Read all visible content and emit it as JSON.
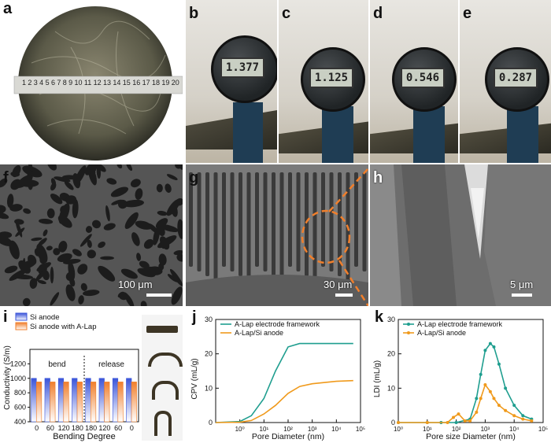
{
  "panels": {
    "a": "a",
    "b": "b",
    "c": "c",
    "d": "d",
    "e": "e",
    "f": "f",
    "g": "g",
    "h": "h",
    "i": "i",
    "j": "j",
    "k": "k"
  },
  "calipers": {
    "b": "1.377",
    "c": "1.125",
    "d": "0.546",
    "e": "0.287"
  },
  "ruler_ticks": [
    "1",
    "2",
    "3",
    "4",
    "5",
    "6",
    "7",
    "8",
    "9",
    "10",
    "11",
    "12",
    "13",
    "14",
    "15",
    "16",
    "17",
    "18",
    "19",
    "20"
  ],
  "scale_bars": {
    "f": "100 μm",
    "g": "30 μm",
    "h": "5 μm"
  },
  "chart_data": [
    {
      "panel": "i",
      "type": "bar",
      "ylabel": "Conductivity (S/m)",
      "xlabel": "Bending Degree",
      "categories": [
        "0",
        "60",
        "120",
        "180",
        "180",
        "120",
        "60",
        "0"
      ],
      "series": [
        {
          "name": "Si anode",
          "values": [
            1000,
            1000,
            1000,
            1000,
            1000,
            1000,
            1000,
            1000
          ],
          "color": "#3b55d9"
        },
        {
          "name": "Si anode with A-Lap",
          "values": [
            950,
            950,
            950,
            950,
            950,
            950,
            950,
            950
          ],
          "color": "#f07f2c"
        }
      ],
      "ylim": [
        400,
        1400
      ],
      "yticks": [
        "400",
        "600",
        "800",
        "1000",
        "1200"
      ],
      "annotations": [
        "bend",
        "release"
      ],
      "legend": "top"
    },
    {
      "panel": "j",
      "type": "line",
      "xlabel": "Pore  Diameter (nm)",
      "ylabel": "CPV (mL/g)",
      "xscale": "log",
      "xlim": [
        0.1,
        100000
      ],
      "ylim": [
        0,
        30
      ],
      "yticks": [
        "0",
        "10",
        "20",
        "30"
      ],
      "xticks": [
        "10⁰",
        "10¹",
        "10²",
        "10³",
        "10⁴",
        "10⁵"
      ],
      "series": [
        {
          "name": "A-Lap electrode framework",
          "color": "#1f9e8f",
          "x": [
            0.1,
            1,
            3,
            10,
            30,
            100,
            300,
            1000,
            10000,
            50000
          ],
          "y": [
            0,
            0.3,
            2,
            7,
            15,
            22,
            23,
            23,
            23,
            23
          ]
        },
        {
          "name": "A-Lap/Si anode",
          "color": "#f09a1c",
          "x": [
            0.1,
            1,
            3,
            10,
            30,
            100,
            300,
            1000,
            10000,
            50000
          ],
          "y": [
            0,
            0.1,
            0.6,
            2.5,
            5,
            8.5,
            10.5,
            11.3,
            12,
            12.2
          ]
        }
      ],
      "legend": "top-left"
    },
    {
      "panel": "k",
      "type": "line",
      "xlabel": "Pore size Diameter (nm)",
      "ylabel": "LDI (mL/g)",
      "xscale": "log",
      "xlim": [
        1,
        100000
      ],
      "ylim": [
        0,
        30
      ],
      "yticks": [
        "0",
        "10",
        "20",
        "30"
      ],
      "xticks": [
        "10⁰",
        "10¹",
        "10²",
        "10³",
        "10⁴",
        "10⁵"
      ],
      "series": [
        {
          "name": "A-Lap electrode framework",
          "color": "#1f9e8f",
          "x": [
            1,
            10,
            30,
            100,
            300,
            500,
            700,
            1000,
            1500,
            2000,
            3000,
            5000,
            10000,
            20000,
            40000
          ],
          "y": [
            0,
            0,
            0,
            0,
            1,
            7,
            14,
            21,
            23,
            22,
            17,
            10,
            5,
            2,
            1
          ]
        },
        {
          "name": "A-Lap/Si anode",
          "color": "#f09a1c",
          "x": [
            1,
            10,
            50,
            80,
            120,
            200,
            300,
            500,
            700,
            1000,
            1500,
            2000,
            3000,
            5000,
            10000,
            20000,
            40000
          ],
          "y": [
            0,
            0,
            0,
            1.5,
            2.5,
            0.5,
            0.5,
            3,
            7,
            11,
            9,
            7,
            5,
            3.5,
            2,
            1,
            0.5
          ]
        }
      ],
      "legend": "top-left"
    }
  ]
}
